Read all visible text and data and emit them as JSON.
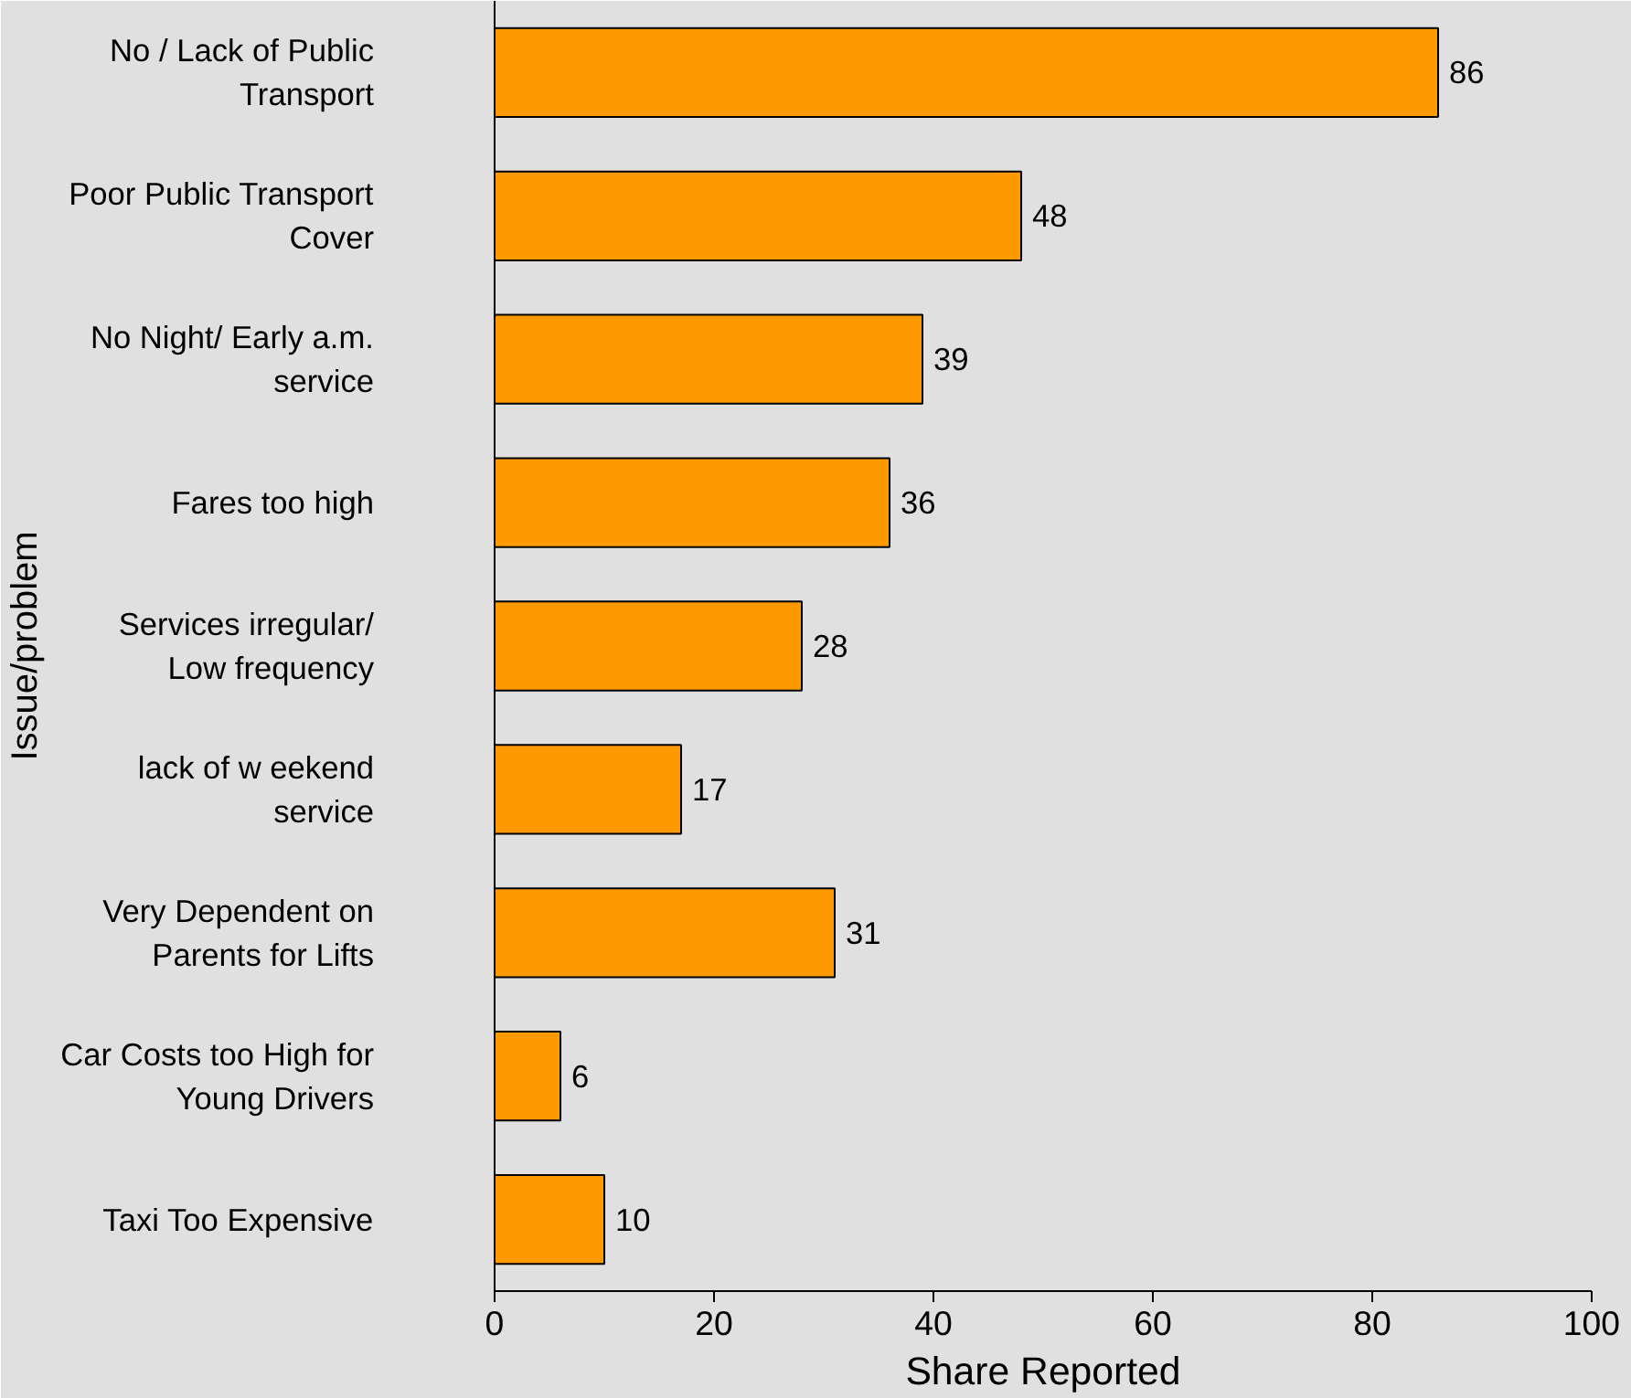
{
  "chart_data": {
    "type": "bar",
    "orientation": "horizontal",
    "xlabel": "Share Reported",
    "ylabel": "Issue/problem",
    "categories": [
      "No / Lack of Public Transport",
      "Poor Public Transport Cover",
      "No Night/ Early a.m. service",
      "Fares too high",
      "Services irregular/ Low frequency",
      "lack of w eekend service",
      "Very Dependent on Parents for Lifts",
      "Car Costs too High for Young Drivers",
      "Taxi Too Expensive"
    ],
    "values": [
      86,
      48,
      39,
      36,
      28,
      17,
      31,
      6,
      10
    ],
    "color": "#ff9900",
    "xlim": [
      0,
      100
    ],
    "xticks": [
      0,
      20,
      40,
      60,
      80,
      100
    ],
    "data_labels": true
  }
}
